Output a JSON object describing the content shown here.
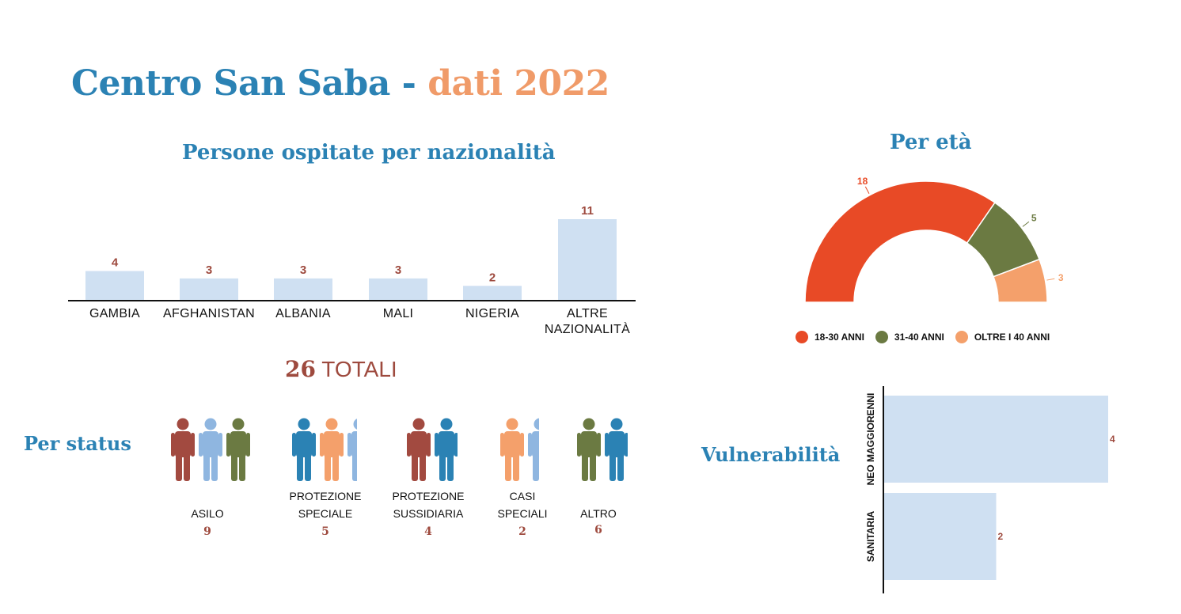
{
  "title": {
    "part1": "Centro San Saba",
    "separator": " - ",
    "part2": "dati 2022"
  },
  "colors": {
    "blue_title": "#2b82b4",
    "orange_title": "#f09b69",
    "bar_fill": "#cfe0f2",
    "value_red": "#9e4a3e",
    "age_red": "#e84a26",
    "age_green": "#6b7a42",
    "age_orange": "#f4a06b"
  },
  "totals": {
    "number": "26",
    "word": "TOTALI"
  },
  "chart_data": [
    {
      "type": "bar",
      "title": "Persone ospitate per nazionalità",
      "categories": [
        "GAMBIA",
        "AFGHANISTAN",
        "ALBANIA",
        "MALI",
        "NIGERIA",
        "ALTRE NAZIONALITÀ"
      ],
      "values": [
        4,
        3,
        3,
        3,
        2,
        11
      ],
      "ylim": [
        0,
        11
      ]
    },
    {
      "type": "pie",
      "title": "Per età",
      "categories": [
        "18-30 ANNI",
        "31-40 ANNI",
        "OLTRE I 40 ANNI"
      ],
      "values": [
        18,
        5,
        3
      ],
      "colors": [
        "#e84a26",
        "#6b7a42",
        "#f4a06b"
      ],
      "legend_position": "bottom"
    },
    {
      "type": "bar",
      "orientation": "horizontal",
      "title": "Vulnerabilità",
      "categories": [
        "NEO MAGGIORENNI",
        "SANITARIA"
      ],
      "values": [
        4,
        2
      ],
      "xlim": [
        0,
        4
      ]
    }
  ],
  "status": {
    "title": "Per status",
    "groups": [
      {
        "label_lines": [
          "ASILO"
        ],
        "value": "9",
        "figures": [
          "#a24a40",
          "#8fb6e0",
          "#6b7a42"
        ]
      },
      {
        "label_lines": [
          "PROTEZIONE",
          "SPECIALE"
        ],
        "value": "5",
        "figures": [
          "#2b82b4",
          "#f4a06b",
          "#8fb6e0"
        ]
      },
      {
        "label_lines": [
          "PROTEZIONE",
          "SUSSIDIARIA"
        ],
        "value": "4",
        "figures": [
          "#a24a40",
          "#2b82b4"
        ]
      },
      {
        "label_lines": [
          "CASI",
          "SPECIALI"
        ],
        "value": "2",
        "figures": [
          "#f4a06b",
          "#8fb6e0"
        ]
      },
      {
        "label_lines": [
          "ALTRO"
        ],
        "value": "6",
        "figures": [
          "#6b7a42",
          "#2b82b4"
        ]
      }
    ]
  }
}
